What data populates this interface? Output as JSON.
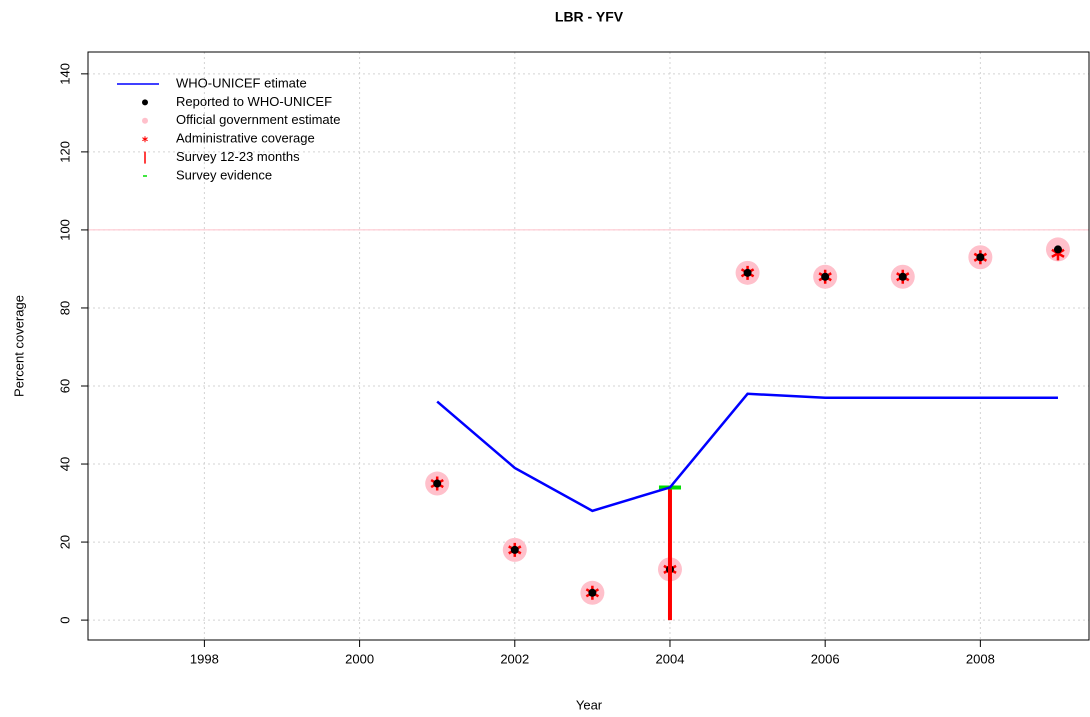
{
  "chart_data": {
    "type": "line",
    "title": "LBR  -  YFV",
    "xlabel": "Year",
    "ylabel": "Percent coverage",
    "x": [
      2001,
      2002,
      2003,
      2004,
      2005,
      2006,
      2007,
      2008,
      2009
    ],
    "series": [
      {
        "name": "WHO-UNICEF etimate",
        "color": "#0000ff",
        "marker": "line",
        "values": [
          56,
          39,
          28,
          34,
          58,
          57,
          57,
          57,
          57
        ]
      },
      {
        "name": "Reported to WHO-UNICEF",
        "color": "#000000",
        "marker": "dot",
        "values": [
          35,
          18,
          7,
          13,
          89,
          88,
          88,
          93,
          95
        ]
      },
      {
        "name": "Official government estimate",
        "color": "#ffc0cb",
        "marker": "circle",
        "values": [
          35,
          18,
          7,
          13,
          89,
          88,
          88,
          93,
          95
        ]
      },
      {
        "name": "Administrative coverage",
        "color": "#ff0000",
        "marker": "star",
        "values": [
          35,
          18,
          7,
          13,
          89,
          88,
          88,
          93,
          94
        ]
      },
      {
        "name": "Survey 12-23 months",
        "color": "#ff0000",
        "marker": "bar",
        "values": [
          null,
          null,
          null,
          34,
          null,
          null,
          null,
          null,
          null
        ]
      },
      {
        "name": "Survey evidence",
        "color": "#00dd00",
        "marker": "dash",
        "values": [
          null,
          null,
          null,
          34,
          null,
          null,
          null,
          null,
          null
        ]
      }
    ],
    "hline": 100,
    "hline_color": "#ffc0cb",
    "xlim": [
      1996.5,
      2009.4
    ],
    "xticks": [
      1998,
      2000,
      2002,
      2004,
      2006,
      2008
    ],
    "ylim": [
      -5.1,
      145.6
    ],
    "yticks": [
      0,
      20,
      40,
      60,
      80,
      100,
      120,
      140
    ],
    "grid": true,
    "legend": "top-left"
  }
}
